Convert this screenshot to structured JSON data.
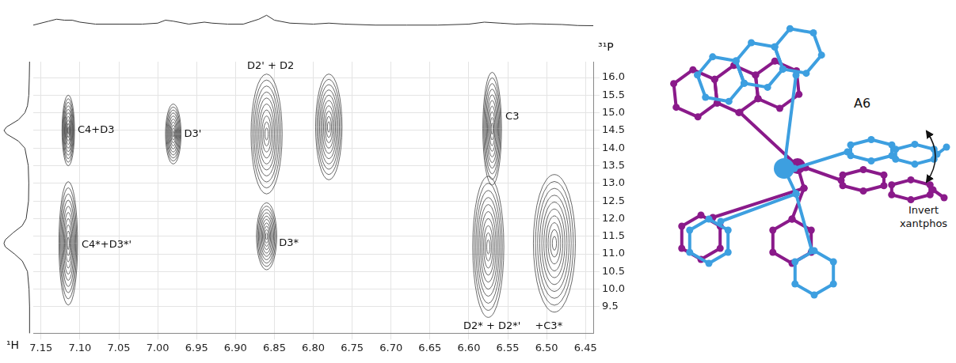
{
  "chart_data": {
    "type": "contour",
    "x_label": "¹H",
    "y_label": "³¹P",
    "xlim": [
      7.16,
      6.44
    ],
    "ylim": [
      8.75,
      16.45
    ],
    "xticks": [
      7.15,
      {
        "value": 7.1,
        "label": "7.10"
      },
      7.05,
      {
        "value": 7,
        "label": "7.00"
      },
      6.95,
      {
        "value": 6.9,
        "label": "6.90"
      },
      6.85,
      {
        "value": 6.8,
        "label": "6.80"
      },
      6.75,
      {
        "value": 6.7,
        "label": "6.70"
      },
      6.65,
      {
        "value": 6.6,
        "label": "6.60"
      },
      6.55,
      {
        "value": 6.5,
        "label": "6.50"
      },
      6.45
    ],
    "yticks": [
      {
        "value": 16,
        "label": "16.0"
      },
      15.5,
      {
        "value": 15,
        "label": "15.0"
      },
      14.5,
      {
        "value": 14,
        "label": "14.0"
      },
      13.5,
      {
        "value": 13,
        "label": "13.0"
      },
      12.5,
      {
        "value": 12,
        "label": "12.0"
      },
      11.5,
      {
        "value": 11,
        "label": "11.0"
      },
      10.5,
      {
        "value": 10,
        "label": "10.0"
      },
      9.5
    ],
    "grid": true,
    "peaks": [
      {
        "x": 7.115,
        "y": 14.5,
        "x_halfwidth": 0.008,
        "y_halfwidth": 1.0
      },
      {
        "x": 7.115,
        "y": 11.3,
        "x_halfwidth": 0.012,
        "y_halfwidth": 1.75
      },
      {
        "x": 6.98,
        "y": 14.4,
        "x_halfwidth": 0.01,
        "y_halfwidth": 0.85
      },
      {
        "x": 6.86,
        "y": 14.4,
        "x_halfwidth": 0.02,
        "y_halfwidth": 1.7
      },
      {
        "x": 6.78,
        "y": 14.6,
        "x_halfwidth": 0.017,
        "y_halfwidth": 1.5
      },
      {
        "x": 6.86,
        "y": 11.5,
        "x_halfwidth": 0.013,
        "y_halfwidth": 0.95
      },
      {
        "x": 6.57,
        "y": 14.55,
        "x_halfwidth": 0.012,
        "y_halfwidth": 1.6
      },
      {
        "x": 6.575,
        "y": 11.2,
        "x_halfwidth": 0.02,
        "y_halfwidth": 2.0
      },
      {
        "x": 6.49,
        "y": 11.3,
        "x_halfwidth": 0.027,
        "y_halfwidth": 1.95
      }
    ],
    "annotations": [
      {
        "text": "C4+D3",
        "x": 7.103,
        "y": 14.5
      },
      {
        "text": "C4*+D3*'",
        "x": 7.098,
        "y": 11.25
      },
      {
        "text": "D3'",
        "x": 6.966,
        "y": 14.4
      },
      {
        "text": "D2' + D2",
        "x": 6.885,
        "y": 16.32
      },
      {
        "text": "D3*",
        "x": 6.844,
        "y": 11.3
      },
      {
        "text": "C3",
        "x": 6.553,
        "y": 14.9
      },
      {
        "text": "D2* + D2*'",
        "x": 6.607,
        "y": 8.95
      },
      {
        "text": "+C3*",
        "x": 6.515,
        "y": 8.95
      }
    ],
    "projection_x": {
      "x": [
        7.16,
        7.14,
        7.13,
        7.12,
        7.11,
        7.1,
        7.08,
        7.05,
        7.02,
        7.0,
        6.99,
        6.98,
        6.96,
        6.94,
        6.93,
        6.91,
        6.89,
        6.87,
        6.86,
        6.85,
        6.83,
        6.8,
        6.78,
        6.76,
        6.72,
        6.68,
        6.64,
        6.6,
        6.58,
        6.56,
        6.54,
        6.52,
        6.5,
        6.48,
        6.46,
        6.44
      ],
      "values": [
        0.05,
        0.25,
        0.35,
        0.3,
        0.3,
        0.2,
        0.1,
        0.1,
        0.1,
        0.15,
        0.3,
        0.25,
        0.1,
        0.2,
        0.15,
        0.1,
        0.1,
        0.35,
        0.55,
        0.3,
        0.15,
        0.1,
        0.15,
        0.1,
        0.05,
        0.05,
        0.05,
        0.1,
        0.2,
        0.15,
        0.1,
        0.12,
        0.1,
        0.08,
        0.03,
        0.02
      ]
    },
    "projection_y": {
      "y": [
        16.45,
        16.0,
        15.5,
        15.2,
        15.0,
        14.8,
        14.6,
        14.5,
        14.4,
        14.2,
        14.0,
        13.5,
        13.0,
        12.5,
        12.0,
        11.8,
        11.6,
        11.4,
        11.3,
        11.2,
        11.0,
        10.8,
        10.5,
        10.0,
        9.5,
        8.75
      ],
      "values": [
        0.02,
        0.03,
        0.05,
        0.1,
        0.2,
        0.45,
        0.9,
        1.0,
        0.9,
        0.45,
        0.2,
        0.07,
        0.05,
        0.06,
        0.15,
        0.3,
        0.65,
        0.95,
        1.0,
        0.95,
        0.6,
        0.3,
        0.1,
        0.04,
        0.02,
        0.02
      ]
    }
  },
  "structure": {
    "label": "A6",
    "arrow_label": "Invert xantphos"
  }
}
